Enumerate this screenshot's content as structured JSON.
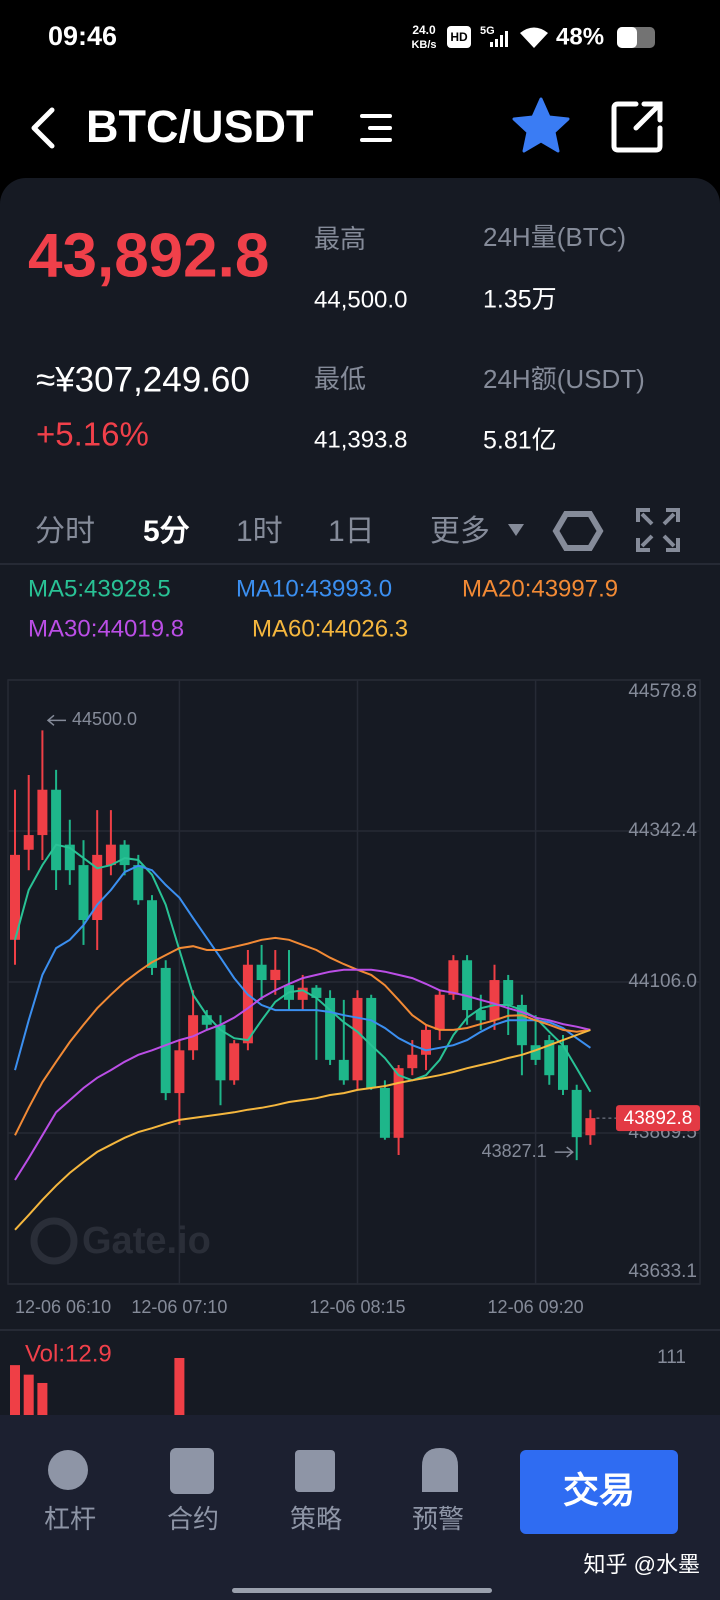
{
  "status_bar": {
    "time": "09:46",
    "net_speed": "24.0",
    "net_unit": "KB/s",
    "hd": "HD",
    "signal": "5G",
    "battery": "48%"
  },
  "header": {
    "pair": "BTC/USDT"
  },
  "ticker": {
    "last": "43,892.8",
    "cny": "≈¥307,249.60",
    "change": "+5.16%",
    "high_label": "最高",
    "high": "44,500.0",
    "low_label": "最低",
    "low": "41,393.8",
    "vol_label": "24H量(BTC)",
    "vol": "1.35万",
    "amount_label": "24H额(USDT)",
    "amount": "5.81亿"
  },
  "tabs": [
    "分时",
    "5分",
    "1时",
    "1日",
    "更多"
  ],
  "chart_data": {
    "type": "candlestick",
    "categories": [
      "12-06 06:10",
      null,
      null,
      null,
      null,
      null,
      null,
      null,
      null,
      null,
      null,
      null,
      "12-06 07:10",
      null,
      null,
      null,
      null,
      null,
      null,
      null,
      null,
      null,
      null,
      null,
      null,
      "12-06 08:15",
      null,
      null,
      null,
      null,
      null,
      null,
      null,
      null,
      null,
      null,
      null,
      null,
      "12-06 09:20",
      null,
      null,
      null,
      null
    ],
    "open": [
      44172,
      44313,
      44336,
      44407,
      44321,
      44289,
      44203,
      44289,
      44321,
      44289,
      44234,
      44128,
      43932,
      43999,
      44054,
      44039,
      43952,
      44010,
      44133,
      44109,
      44101,
      44078,
      44097,
      44081,
      43984,
      43952,
      44081,
      43940,
      43862,
      43971,
      43992,
      44031,
      44086,
      44140,
      44062,
      44046,
      44109,
      44070,
      44007,
      44015,
      44007,
      43937,
      43866
    ],
    "high": [
      44407,
      44430,
      44500,
      44438,
      44360,
      44328,
      44375,
      44375,
      44328,
      44305,
      44242,
      44140,
      44015,
      44093,
      44062,
      44054,
      44015,
      44156,
      44164,
      44156,
      44156,
      44117,
      44101,
      44093,
      44078,
      44093,
      44086,
      43952,
      43976,
      44015,
      44039,
      44093,
      44148,
      44148,
      44086,
      44133,
      44117,
      44086,
      44054,
      44023,
      44023,
      43945,
      43906
    ],
    "low": [
      44133,
      44281,
      44297,
      44250,
      44258,
      44164,
      44156,
      44273,
      44273,
      44227,
      44117,
      43921,
      43882,
      43984,
      44031,
      43913,
      43945,
      43999,
      44078,
      44086,
      44062,
      44062,
      43984,
      43976,
      43945,
      43937,
      43937,
      43859,
      43835,
      43960,
      43968,
      44015,
      44078,
      44039,
      44031,
      44031,
      44023,
      43960,
      43976,
      43945,
      43929,
      43827.1,
      43851
    ],
    "close": [
      44305,
      44336,
      44407,
      44281,
      44281,
      44203,
      44305,
      44321,
      44289,
      44234,
      44128,
      43932,
      43999,
      44054,
      44039,
      43952,
      44010,
      44133,
      44109,
      44125,
      44078,
      44097,
      44081,
      43984,
      43952,
      44081,
      43940,
      43862,
      43971,
      43992,
      44031,
      44086,
      44140,
      44062,
      44046,
      44109,
      44070,
      44007,
      43984,
      43960,
      43937,
      43863,
      43892.8
    ],
    "up_color": "#ef3f46",
    "down_color": "#1eb68a",
    "series": [
      {
        "name": "MA5:43928.5",
        "color": "#29c295",
        "values": [
          44172,
          44250,
          44289,
          44321,
          44316,
          44300,
          44284,
          44289,
          44300,
          44297,
          44274,
          44227,
          44156,
          44086,
          44054,
          44031,
          44018,
          44015,
          44046,
          44075,
          44090,
          44093,
          44081,
          44062,
          44043,
          44028,
          44007,
          43987,
          43960,
          43952,
          43960,
          43984,
          44023,
          44050,
          44065,
          44070,
          44070,
          44062,
          44050,
          44028,
          44007,
          43971,
          43934
        ]
      },
      {
        "name": "MA10:43993.0",
        "color": "#3b8ff0",
        "values": [
          43968,
          44046,
          44117,
          44159,
          44172,
          44195,
          44227,
          44250,
          44278,
          44288,
          44281,
          44258,
          44238,
          44206,
          44175,
          44144,
          44112,
          44086,
          44070,
          44062,
          44062,
          44062,
          44062,
          44059,
          44054,
          44050,
          44046,
          44034,
          44018,
          44007,
          43999,
          44003,
          44007,
          44015,
          44028,
          44039,
          44046,
          44046,
          44046,
          44043,
          44034,
          44018,
          44003
        ]
      },
      {
        "name": "MA20:43997.9",
        "color": "#f28a35",
        "values": [
          43866,
          43909,
          43949,
          43981,
          44012,
          44039,
          44065,
          44086,
          44106,
          44122,
          44137,
          44148,
          44159,
          44162,
          44156,
          44156,
          44161,
          44166,
          44172,
          44175,
          44172,
          44164,
          44156,
          44144,
          44134,
          44125,
          44117,
          44101,
          44078,
          44054,
          44039,
          44031,
          44031,
          44034,
          44040,
          44046,
          44053,
          44054,
          44046,
          44039,
          44031,
          44028,
          44031
        ]
      },
      {
        "name": "MA30:44019.8",
        "color": "#bb4ee6",
        "values": [
          43796,
          43830,
          43866,
          43902,
          43921,
          43940,
          43956,
          43968,
          43981,
          43992,
          43999,
          44007,
          44015,
          44021,
          44031,
          44039,
          44050,
          44065,
          44081,
          44093,
          44103,
          44112,
          44117,
          44122,
          44125,
          44125,
          44125,
          44122,
          44117,
          44112,
          44103,
          44093,
          44089,
          44084,
          44078,
          44072,
          44065,
          44059,
          44050,
          44046,
          44040,
          44036,
          44031
        ]
      },
      {
        "name": "MA60:44026.3",
        "color": "#f5b73e",
        "values": [
          43718,
          43741,
          43765,
          43787,
          43807,
          43824,
          43840,
          43851,
          43862,
          43871,
          43877,
          43884,
          43890,
          43893,
          43896,
          43899,
          43902,
          43906,
          43909,
          43913,
          43918,
          43921,
          43924,
          43929,
          43932,
          43937,
          43940,
          43943,
          43948,
          43952,
          43956,
          43960,
          43965,
          43971,
          43976,
          43981,
          43987,
          43992,
          43999,
          44007,
          44015,
          44023,
          44031
        ]
      }
    ],
    "ylim": [
      43633.1,
      44578.8
    ],
    "yticks": [
      44578.8,
      44342.4,
      {
        "value": 44106,
        "label": "44106.0"
      },
      43869.5,
      43633.1
    ],
    "grid": true,
    "annotations": [
      "44500.0",
      "43827.1"
    ],
    "price_tag": "43892.8",
    "watermark": "Gate.io",
    "volume": {
      "label": "Vol:12.9",
      "ylim": [
        0,
        111
      ],
      "yticks": [
        111
      ],
      "color": "#ef3f46",
      "values": [
        105,
        97,
        90,
        null,
        null,
        null,
        null,
        null,
        null,
        null,
        null,
        null,
        111,
        null,
        null,
        null,
        null,
        null,
        null,
        null,
        null,
        null,
        null,
        null,
        null,
        null,
        null,
        null,
        null,
        null,
        null,
        null,
        null,
        null,
        null,
        null,
        null,
        null,
        null,
        null,
        null,
        null,
        null
      ]
    }
  },
  "bottom_nav": {
    "items": [
      "杠杆",
      "合约",
      "策略",
      "预警"
    ],
    "trade": "交易"
  },
  "credit": "知乎 @水墨"
}
